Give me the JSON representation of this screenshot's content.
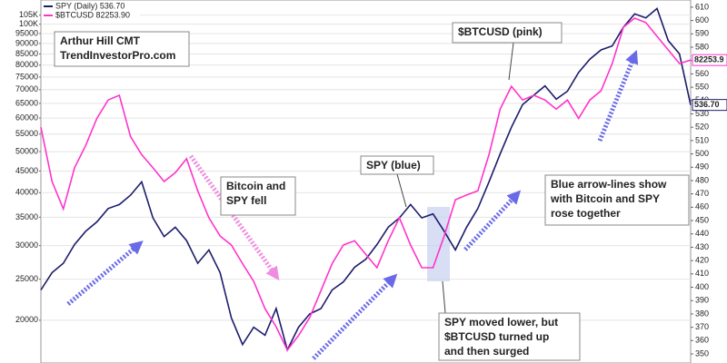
{
  "chart_data": {
    "type": "line",
    "yscale": "log",
    "grid": true,
    "legend": "upper left",
    "ylim": [
      15850,
      114000
    ],
    "yticks": [
      20000,
      25000,
      30000,
      35000,
      40000,
      45000,
      50000,
      55000,
      60000,
      65000,
      70000,
      75000,
      80000,
      85000,
      90000,
      95000,
      {
        "value": 100000,
        "label": "100K"
      },
      {
        "value": 105000,
        "label": "105K"
      }
    ],
    "y2lim": [
      343.2,
      615.4
    ],
    "y2ticks": [
      350,
      360,
      370,
      380,
      390,
      400,
      410,
      420,
      430,
      440,
      450,
      460,
      470,
      480,
      490,
      500,
      510,
      520,
      530,
      540,
      550,
      560,
      570,
      580,
      590,
      600,
      610
    ],
    "series": [
      {
        "name": "SPY (Daily) 536.70",
        "color": "#1c1c6b",
        "axis": "y2",
        "values": [
          398,
          411,
          418,
          432,
          442,
          449,
          459,
          462,
          469,
          479,
          452,
          438,
          445,
          435,
          418,
          428,
          411,
          377,
          357,
          370,
          364,
          384,
          353,
          370,
          380,
          384,
          398,
          404,
          415,
          421,
          432,
          445,
          452,
          462,
          452,
          455,
          442,
          428,
          445,
          459,
          479,
          500,
          520,
          537,
          544,
          551,
          541,
          547,
          561,
          571,
          578,
          581,
          595,
          605,
          602,
          609,
          585,
          575,
          536.7
        ],
        "value_labels": [
          null,
          null,
          null,
          null,
          null,
          null,
          null,
          null,
          null,
          null,
          null,
          null,
          null,
          null,
          null,
          null,
          null,
          null,
          null,
          null,
          null,
          null,
          null,
          null,
          null,
          null,
          null,
          null,
          null,
          null,
          null,
          null,
          null,
          null,
          null,
          null,
          null,
          null,
          null,
          null,
          null,
          null,
          null,
          null,
          null,
          null,
          null,
          null,
          null,
          null,
          null,
          null,
          null,
          null,
          null,
          null,
          null,
          null,
          "536.70"
        ]
      },
      {
        "name": "$BTCUSD 82253.90",
        "color": "#ff33cc",
        "values": [
          57100,
          42500,
          36600,
          45800,
          51700,
          59900,
          66200,
          67900,
          54300,
          49200,
          45800,
          42500,
          44600,
          48100,
          40400,
          34900,
          31600,
          30100,
          27200,
          24700,
          21300,
          19300,
          17000,
          18400,
          20300,
          23500,
          27200,
          30100,
          30800,
          28600,
          26600,
          30800,
          34900,
          30100,
          26600,
          26600,
          31600,
          38500,
          39500,
          40400,
          49200,
          63000,
          71300,
          66200,
          67900,
          66200,
          63000,
          66200,
          59900,
          66200,
          69600,
          80700,
          98300,
          103300,
          100800,
          93600,
          86900,
          80700,
          82253.9
        ]
      }
    ],
    "annotations": [
      {
        "lines": [
          "Arthur Hill CMT",
          "TrendInvestorPro.com"
        ]
      },
      {
        "lines": [
          "$BTCUSD (pink)"
        ]
      },
      {
        "lines": [
          "Bitcoin and",
          "SPY fell"
        ]
      },
      {
        "lines": [
          "SPY (blue)"
        ]
      },
      {
        "lines": [
          "Blue arrow-lines show",
          "with Bitcoin and SPY",
          "rose together"
        ]
      },
      {
        "lines": [
          "SPY moved lower, but",
          "$BTCUSD turned up",
          "and then surged"
        ]
      }
    ]
  }
}
